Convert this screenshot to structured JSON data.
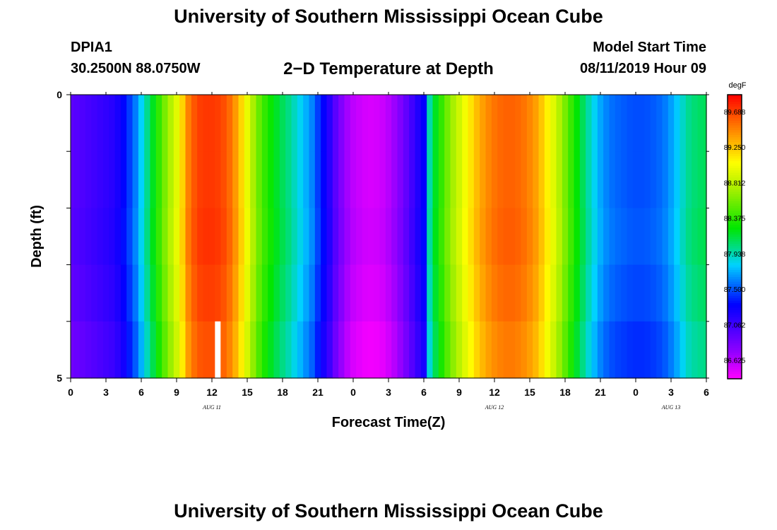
{
  "header": {
    "title": "University of Southern Mississippi Ocean Cube",
    "station_id": "DPIA1",
    "station_coords": "30.2500N 88.0750W",
    "plot_title": "2−D Temperature at Depth",
    "model_label": "Model Start Time",
    "model_time": "08/11/2019 Hour 09"
  },
  "footer": {
    "title": "University of Southern Mississippi Ocean Cube"
  },
  "chart_data": {
    "type": "heatmap",
    "title": "2−D Temperature at Depth",
    "xlabel": "Forecast Time(Z)",
    "ylabel": "Depth (ft)",
    "x_tick_labels": [
      "0",
      "3",
      "6",
      "9",
      "12",
      "15",
      "18",
      "21",
      "0",
      "3",
      "6",
      "9",
      "12",
      "15",
      "18",
      "21",
      "0",
      "3",
      "6"
    ],
    "x_range_hours": [
      0,
      54
    ],
    "day_labels": [
      {
        "text": "AUG 11",
        "hour": 12
      },
      {
        "text": "AUG 12",
        "hour": 36
      },
      {
        "text": "AUG 13",
        "hour": 51
      }
    ],
    "y_tick_labels": [
      "0",
      "5"
    ],
    "y_range_ft": [
      0,
      5
    ],
    "depth_levels_ft": [
      0.5,
      1.5,
      2.5,
      3.5,
      4.5
    ],
    "colorbar": {
      "unit": "degF",
      "min": 86.4,
      "max": 89.9,
      "labels": [
        "89.688",
        "89.250",
        "88.812",
        "88.375",
        "87.938",
        "87.500",
        "87.062",
        "86.625"
      ]
    },
    "model_start_marker_hour": 12.5,
    "forecast_hours": [
      0,
      0.5,
      1,
      1.5,
      2,
      2.5,
      3,
      3.5,
      4,
      4.5,
      5,
      5.5,
      6,
      6.5,
      7,
      7.5,
      8,
      8.5,
      9,
      9.5,
      10,
      10.5,
      11,
      11.5,
      12,
      12.5,
      13,
      13.5,
      14,
      14.5,
      15,
      15.5,
      16,
      16.5,
      17,
      17.5,
      18,
      18.5,
      19,
      19.5,
      20,
      20.5,
      21,
      21.5,
      22,
      22.5,
      23,
      23.5,
      24,
      24.5,
      25,
      25.5,
      26,
      26.5,
      27,
      27.5,
      28,
      28.5,
      29,
      29.5,
      30,
      30.5,
      31,
      31.5,
      32,
      32.5,
      33,
      33.5,
      34,
      34.5,
      35,
      35.5,
      36,
      36.5,
      37,
      37.5,
      38,
      38.5,
      39,
      39.5,
      40,
      40.5,
      41,
      41.5,
      42,
      42.5,
      43,
      43.5,
      44,
      44.5,
      45,
      45.5,
      46,
      46.5,
      47,
      47.5,
      48,
      48.5,
      49,
      49.5,
      50,
      50.5,
      51,
      51.5,
      52,
      52.5,
      53,
      53.5,
      54
    ],
    "surface_temperature_degF": [
      86.94,
      86.97,
      87.0,
      87.03,
      87.06,
      87.09,
      87.12,
      87.15,
      87.22,
      87.32,
      87.45,
      87.6,
      87.8,
      88.0,
      88.2,
      88.4,
      88.6,
      88.78,
      88.95,
      89.2,
      89.48,
      89.62,
      89.7,
      89.72,
      89.72,
      89.7,
      89.65,
      89.55,
      89.4,
      89.2,
      88.98,
      88.75,
      88.55,
      88.4,
      88.28,
      88.18,
      88.1,
      88.02,
      87.92,
      87.82,
      87.72,
      87.62,
      87.45,
      87.3,
      87.15,
      86.95,
      86.8,
      86.68,
      86.6,
      86.56,
      86.53,
      86.52,
      86.53,
      86.56,
      86.62,
      86.7,
      86.8,
      86.92,
      87.05,
      87.18,
      87.3,
      87.95,
      88.2,
      88.4,
      88.58,
      88.74,
      88.88,
      89.02,
      89.15,
      89.28,
      89.38,
      89.46,
      89.52,
      89.56,
      89.58,
      89.58,
      89.56,
      89.52,
      89.46,
      89.38,
      89.25,
      89.1,
      88.95,
      88.78,
      88.6,
      88.42,
      88.25,
      88.1,
      87.95,
      87.82,
      87.7,
      87.62,
      87.57,
      87.54,
      87.52,
      87.5,
      87.49,
      87.49,
      87.5,
      87.52,
      87.55,
      87.6,
      87.68,
      87.78,
      87.9,
      88.0,
      88.05,
      88.08,
      88.1
    ],
    "depth_offsets_degF": [
      0.0,
      0.0,
      0.02,
      -0.02,
      -0.08
    ]
  }
}
